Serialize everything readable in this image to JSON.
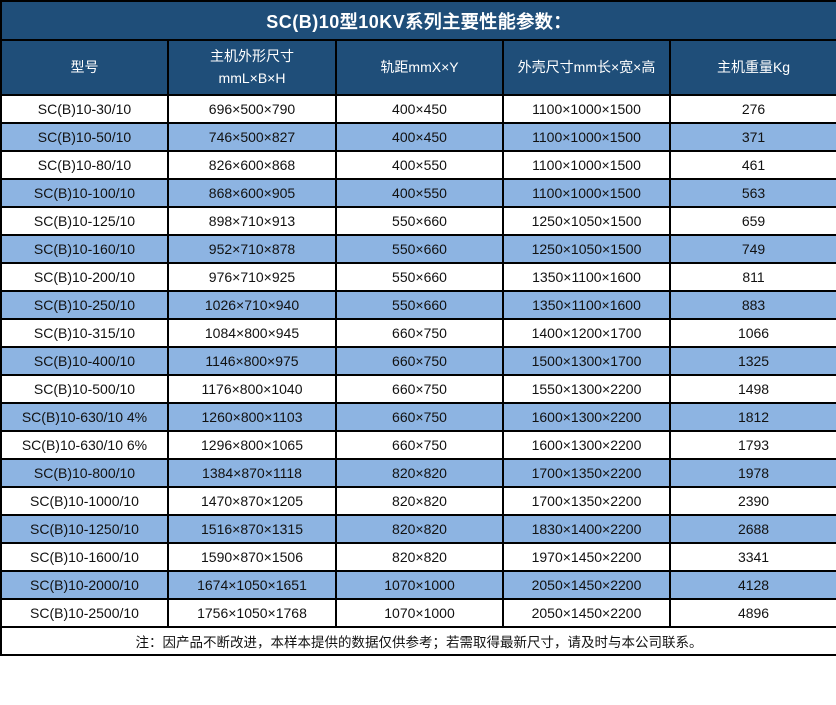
{
  "title": "SC(B)10型10KV系列主要性能参数：",
  "note": "注：因产品不断改进，本样本提供的数据仅供参考；若需取得最新尺寸，请及时与本公司联系。",
  "colors": {
    "header_bg": "#1F4E79",
    "alt_row_bg": "#8DB4E2",
    "row_bg": "#FFFFFF",
    "border": "#000000",
    "header_text": "#FFFFFF",
    "body_text": "#111111"
  },
  "table": {
    "columns": [
      "型号",
      "主机外形尺寸\nmmL×B×H",
      "轨距mmX×Y",
      "外壳尺寸mm长×宽×高",
      "主机重量Kg"
    ],
    "rows": [
      [
        "SC(B)10-30/10",
        "696×500×790",
        "400×450",
        "1100×1000×1500",
        "276"
      ],
      [
        "SC(B)10-50/10",
        "746×500×827",
        "400×450",
        "1100×1000×1500",
        "371"
      ],
      [
        "SC(B)10-80/10",
        "826×600×868",
        "400×550",
        "1100×1000×1500",
        "461"
      ],
      [
        "SC(B)10-100/10",
        "868×600×905",
        "400×550",
        "1100×1000×1500",
        "563"
      ],
      [
        "SC(B)10-125/10",
        "898×710×913",
        "550×660",
        "1250×1050×1500",
        "659"
      ],
      [
        "SC(B)10-160/10",
        "952×710×878",
        "550×660",
        "1250×1050×1500",
        "749"
      ],
      [
        "SC(B)10-200/10",
        "976×710×925",
        "550×660",
        "1350×1100×1600",
        "811"
      ],
      [
        "SC(B)10-250/10",
        "1026×710×940",
        "550×660",
        "1350×1100×1600",
        "883"
      ],
      [
        "SC(B)10-315/10",
        "1084×800×945",
        "660×750",
        "1400×1200×1700",
        "1066"
      ],
      [
        "SC(B)10-400/10",
        "1146×800×975",
        "660×750",
        "1500×1300×1700",
        "1325"
      ],
      [
        "SC(B)10-500/10",
        "1176×800×1040",
        "660×750",
        "1550×1300×2200",
        "1498"
      ],
      [
        "SC(B)10-630/10 4%",
        "1260×800×1103",
        "660×750",
        "1600×1300×2200",
        "1812"
      ],
      [
        "SC(B)10-630/10 6%",
        "1296×800×1065",
        "660×750",
        "1600×1300×2200",
        "1793"
      ],
      [
        "SC(B)10-800/10",
        "1384×870×1118",
        "820×820",
        "1700×1350×2200",
        "1978"
      ],
      [
        "SC(B)10-1000/10",
        "1470×870×1205",
        "820×820",
        "1700×1350×2200",
        "2390"
      ],
      [
        "SC(B)10-1250/10",
        "1516×870×1315",
        "820×820",
        "1830×1400×2200",
        "2688"
      ],
      [
        "SC(B)10-1600/10",
        "1590×870×1506",
        "820×820",
        "1970×1450×2200",
        "3341"
      ],
      [
        "SC(B)10-2000/10",
        "1674×1050×1651",
        "1070×1000",
        "2050×1450×2200",
        "4128"
      ],
      [
        "SC(B)10-2500/10",
        "1756×1050×1768",
        "1070×1000",
        "2050×1450×2200",
        "4896"
      ]
    ]
  }
}
